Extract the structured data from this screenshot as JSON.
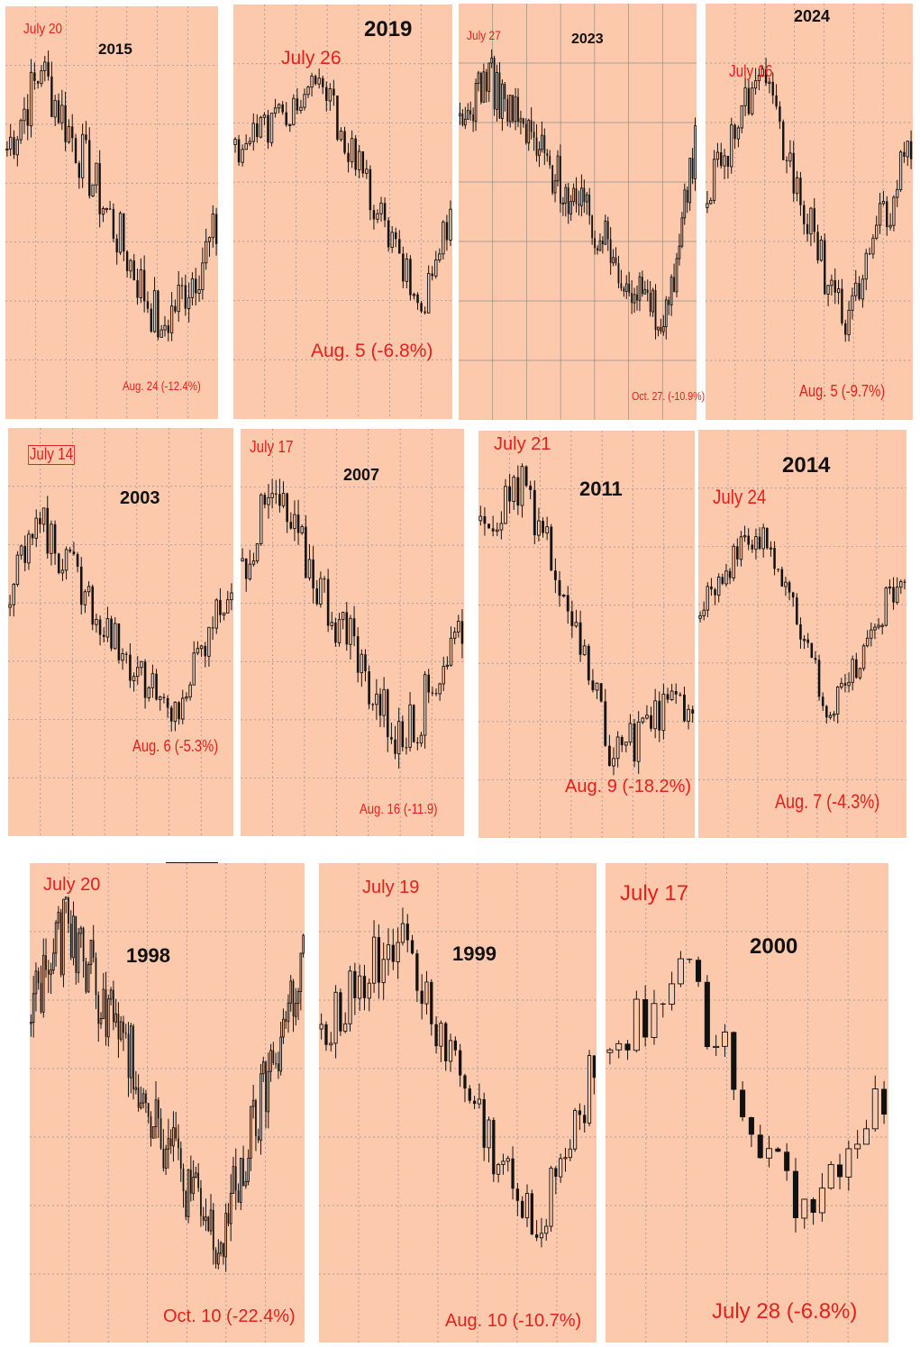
{
  "chart_data": [
    {
      "type": "candlestick",
      "title": "2015",
      "peak_label": "July 20",
      "trough_label": "Aug. 24 (-12.4%)",
      "peak_value": 0,
      "trough_value": -12.4,
      "trough_unit": "%"
    },
    {
      "type": "candlestick",
      "title": "2019",
      "peak_label": "July 26",
      "trough_label": "Aug. 5 (-6.8%)",
      "peak_value": 0,
      "trough_value": -6.8,
      "trough_unit": "%"
    },
    {
      "type": "candlestick",
      "title": "2023",
      "peak_label": "July 27",
      "trough_label": "Oct. 27. (-10.9%)",
      "peak_value": 0,
      "trough_value": -10.9,
      "trough_unit": "%"
    },
    {
      "type": "candlestick",
      "title": "2024",
      "peak_label": "July 16",
      "trough_label": "Aug. 5 (-9.7%)",
      "peak_value": 0,
      "trough_value": -9.7,
      "trough_unit": "%"
    },
    {
      "type": "candlestick",
      "title": "2003",
      "peak_label": "July 14",
      "trough_label": "Aug. 6 (-5.3%)",
      "peak_value": 0,
      "trough_value": -5.3,
      "trough_unit": "%"
    },
    {
      "type": "candlestick",
      "title": "2007",
      "peak_label": "July 17",
      "trough_label": "Aug. 16 (-11.9)",
      "peak_value": 0,
      "trough_value": -11.9,
      "trough_unit": "%"
    },
    {
      "type": "candlestick",
      "title": "2011",
      "peak_label": "July 21",
      "trough_label": "Aug. 9 (-18.2%)",
      "peak_value": 0,
      "trough_value": -18.2,
      "trough_unit": "%"
    },
    {
      "type": "candlestick",
      "title": "2014",
      "peak_label": "July 24",
      "trough_label": "Aug. 7 (-4.3%)",
      "peak_value": 0,
      "trough_value": -4.3,
      "trough_unit": "%"
    },
    {
      "type": "candlestick",
      "title": "1998",
      "peak_label": "July 20",
      "trough_label": "Oct. 10 (-22.4%)",
      "peak_value": 0,
      "trough_value": -22.4,
      "trough_unit": "%"
    },
    {
      "type": "candlestick",
      "title": "1999",
      "peak_label": "July 19",
      "trough_label": "Aug. 10 (-10.7%)",
      "peak_value": 0,
      "trough_value": -10.7,
      "trough_unit": "%"
    },
    {
      "type": "candlestick",
      "title": "2000",
      "peak_label": "July 17",
      "trough_label": "July 28 (-6.8%)",
      "peak_value": 0,
      "trough_value": -6.8,
      "trough_unit": "%"
    }
  ],
  "colors": {
    "panel_background": "#fcc9ac",
    "label_red": "#e3201b",
    "candle": "#111111",
    "grid": "#8f8f8f"
  }
}
